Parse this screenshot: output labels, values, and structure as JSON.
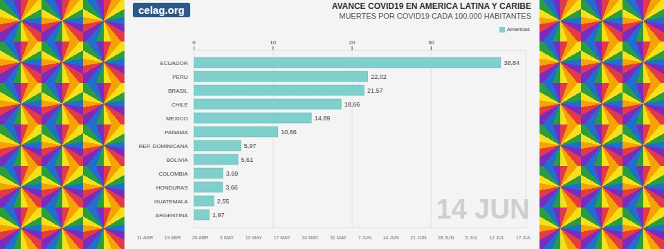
{
  "chart_data": {
    "type": "bar",
    "orientation": "horizontal",
    "source": "celag.org",
    "title": "AVANCE COVID19 EN AMERICA LATINA Y CARIBE",
    "subtitle": "MUERTES POR COVID19 CADA 100.000 HABITANTES",
    "categories": [
      "ECUADOR",
      "PERU",
      "BRASIL",
      "CHILE",
      "MEXICO",
      "PANAMA",
      "REP. DOMINICANA",
      "BOLIVIA",
      "COLOMBIA",
      "HONDURAS",
      "GUATEMALA",
      "ARGENTINA"
    ],
    "series": [
      {
        "name": "Americas",
        "color": "#7fd0cc",
        "values": [
          38.84,
          22.02,
          21.57,
          18.66,
          14.89,
          10.66,
          5.97,
          5.61,
          3.69,
          3.66,
          2.55,
          1.97
        ],
        "value_labels": [
          "38,84",
          "22,02",
          "21,57",
          "18,66",
          "14,89",
          "10,66",
          "5,97",
          "5,61",
          "3,69",
          "3,66",
          "2,55",
          "1,97"
        ]
      }
    ],
    "xlim": [
      0,
      42
    ],
    "xticks": [
      0,
      10,
      20,
      30
    ],
    "grid": true,
    "legend": "top-right",
    "data_labels": true,
    "date_label": "14 JUN",
    "timeline": [
      "11 ABR",
      "19 ABR",
      "26 ABR",
      "3 MAY",
      "10 MAY",
      "17 MAY",
      "24 MAY",
      "31 MAY",
      "7 JUN",
      "14 JUN",
      "21 JUN",
      "28 JUN",
      "5 JUL",
      "12 JUL",
      "17 JUL"
    ]
  }
}
